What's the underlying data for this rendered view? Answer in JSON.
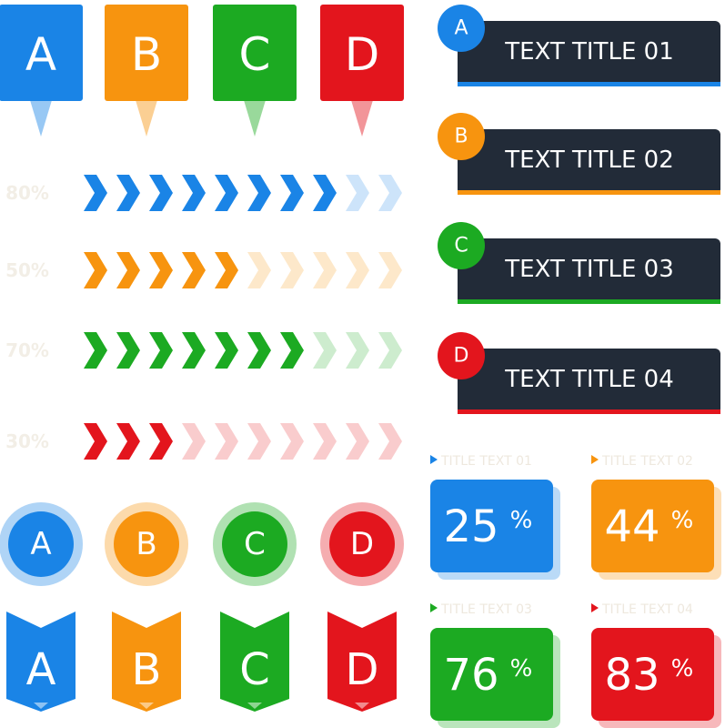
{
  "colors": [
    "#1a84e6",
    "#f7940f",
    "#1caa22",
    "#e3151d"
  ],
  "pins": [
    "A",
    "B",
    "C",
    "D"
  ],
  "progress": [
    {
      "value": 80,
      "label": "80%"
    },
    {
      "value": 50,
      "label": "50%"
    },
    {
      "value": 70,
      "label": "70%"
    },
    {
      "value": 30,
      "label": "30%"
    }
  ],
  "circles": [
    "A",
    "B",
    "C",
    "D"
  ],
  "banners": [
    "A",
    "B",
    "C",
    "D"
  ],
  "titles": [
    {
      "letter": "A",
      "text": "TEXT TITLE 01"
    },
    {
      "letter": "B",
      "text": "TEXT TITLE 02"
    },
    {
      "letter": "C",
      "text": "TEXT TITLE 03"
    },
    {
      "letter": "D",
      "text": "TEXT TITLE 04"
    }
  ],
  "stats": [
    {
      "title": "TITLE TEXT 01",
      "value": 25,
      "unit": "%"
    },
    {
      "title": "TITLE TEXT 02",
      "value": 44,
      "unit": "%"
    },
    {
      "title": "TITLE TEXT 03",
      "value": 76,
      "unit": "%"
    },
    {
      "title": "TITLE TEXT 04",
      "value": 83,
      "unit": "%"
    }
  ]
}
